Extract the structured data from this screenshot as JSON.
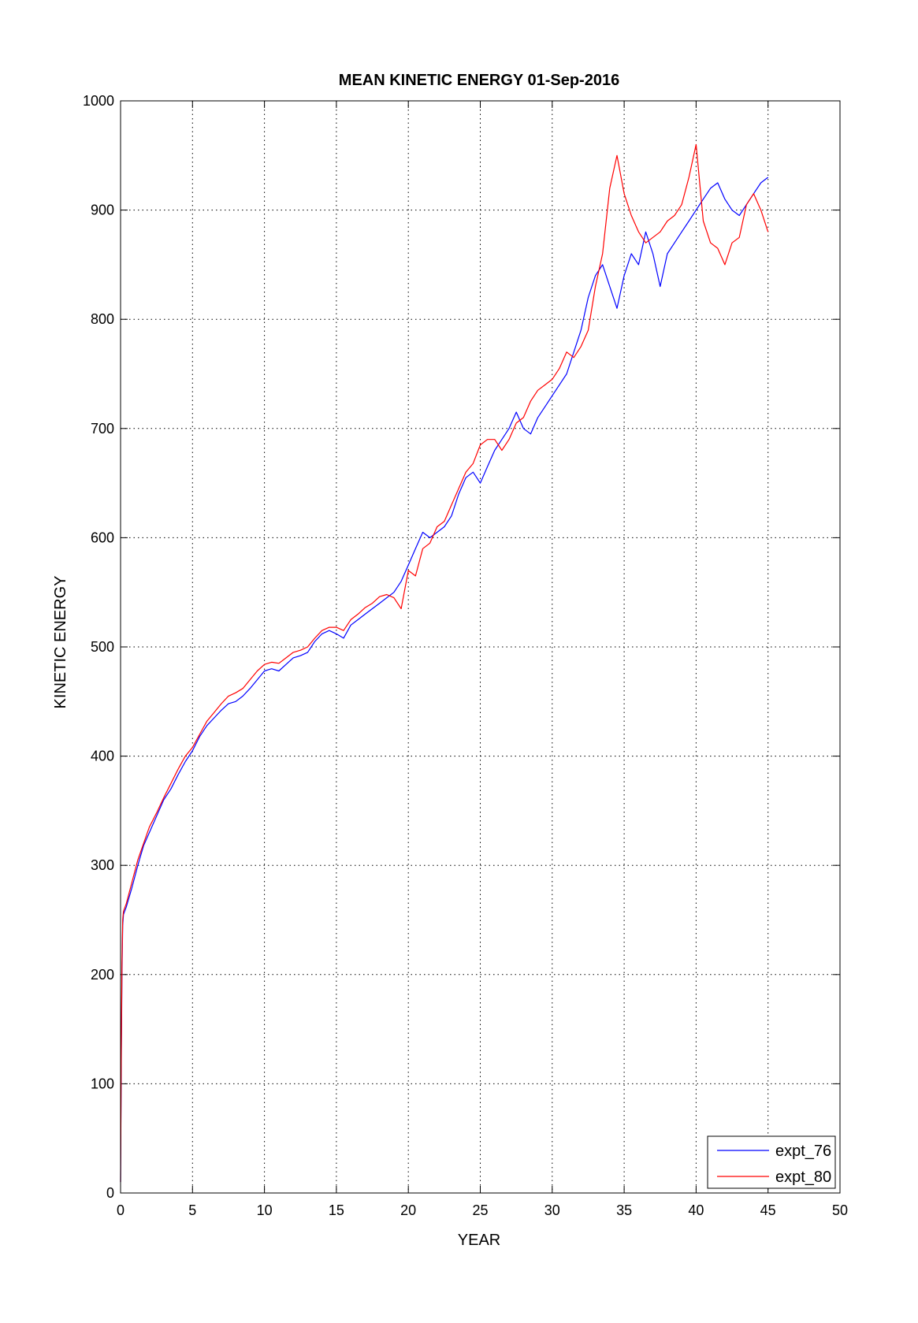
{
  "chart_data": {
    "type": "line",
    "title": "MEAN KINETIC ENERGY 01-Sep-2016",
    "xlabel": "YEAR",
    "ylabel": "KINETIC ENERGY",
    "xlim": [
      0,
      50
    ],
    "ylim": [
      0,
      1000
    ],
    "xticks": [
      "0",
      "5",
      "10",
      "15",
      "20",
      "25",
      "30",
      "35",
      "40",
      "45",
      "50"
    ],
    "yticks": [
      "0",
      "100",
      "200",
      "300",
      "400",
      "500",
      "600",
      "700",
      "800",
      "900",
      "1000"
    ],
    "grid": true,
    "legend": "bottom-right",
    "series": [
      {
        "name": "expt_76",
        "color": "#0000ff",
        "x": [
          0,
          0.05,
          0.1,
          0.15,
          0.2,
          0.4,
          0.8,
          1.2,
          1.6,
          2.0,
          2.5,
          3.0,
          3.5,
          4.0,
          4.5,
          5.0,
          5.5,
          6.0,
          6.5,
          7.0,
          7.5,
          8.0,
          8.5,
          9.0,
          9.5,
          10.0,
          10.5,
          11.0,
          11.5,
          12.0,
          12.5,
          13.0,
          13.5,
          14.0,
          14.5,
          15.0,
          15.5,
          16.0,
          16.5,
          17.0,
          17.5,
          18.0,
          18.5,
          19.0,
          19.5,
          20.0,
          20.5,
          21.0,
          21.5,
          22.0,
          22.5,
          23.0,
          23.5,
          24.0,
          24.5,
          25.0,
          25.5,
          26.0,
          26.5,
          27.0,
          27.5,
          28.0,
          28.5,
          29.0,
          29.5,
          30.0,
          30.5,
          31.0,
          31.5,
          32.0,
          32.5,
          33.0,
          33.5,
          34.0,
          34.5,
          35.0,
          35.5,
          36.0,
          36.5,
          37.0,
          37.5,
          38.0,
          38.5,
          39.0,
          39.5,
          40.0,
          40.5,
          41.0,
          41.5,
          42.0,
          42.5,
          43.0,
          43.5,
          44.0,
          44.5,
          45.0
        ],
        "y": [
          10,
          120,
          200,
          245,
          255,
          262,
          280,
          300,
          318,
          330,
          345,
          360,
          370,
          383,
          395,
          405,
          418,
          428,
          435,
          442,
          448,
          450,
          455,
          462,
          470,
          478,
          480,
          478,
          484,
          490,
          492,
          495,
          505,
          512,
          515,
          512,
          508,
          520,
          525,
          530,
          535,
          540,
          545,
          550,
          560,
          575,
          590,
          605,
          600,
          605,
          610,
          620,
          640,
          655,
          660,
          650,
          665,
          680,
          690,
          700,
          715,
          700,
          695,
          710,
          720,
          730,
          740,
          750,
          770,
          790,
          820,
          840,
          850,
          830,
          810,
          840,
          860,
          850,
          880,
          860,
          830,
          860,
          870,
          880,
          890,
          900,
          910,
          920,
          925,
          910,
          900,
          895,
          905,
          915,
          925,
          930
        ]
      },
      {
        "name": "expt_80",
        "color": "#ff0000",
        "x": [
          0,
          0.05,
          0.1,
          0.15,
          0.2,
          0.4,
          0.8,
          1.2,
          1.6,
          2.0,
          2.5,
          3.0,
          3.5,
          4.0,
          4.5,
          5.0,
          5.5,
          6.0,
          6.5,
          7.0,
          7.5,
          8.0,
          8.5,
          9.0,
          9.5,
          10.0,
          10.5,
          11.0,
          11.5,
          12.0,
          12.5,
          13.0,
          13.5,
          14.0,
          14.5,
          15.0,
          15.5,
          16.0,
          16.5,
          17.0,
          17.5,
          18.0,
          18.5,
          19.0,
          19.5,
          20.0,
          20.5,
          21.0,
          21.5,
          22.0,
          22.5,
          23.0,
          23.5,
          24.0,
          24.5,
          25.0,
          25.5,
          26.0,
          26.5,
          27.0,
          27.5,
          28.0,
          28.5,
          29.0,
          29.5,
          30.0,
          30.5,
          31.0,
          31.5,
          32.0,
          32.5,
          33.0,
          33.5,
          34.0,
          34.5,
          35.0,
          35.5,
          36.0,
          36.5,
          37.0,
          37.5,
          38.0,
          38.5,
          39.0,
          39.5,
          40.0,
          40.5,
          41.0,
          41.5,
          42.0,
          42.5,
          43.0,
          43.5,
          44.0,
          44.5,
          45.0
        ],
        "y": [
          10,
          130,
          210,
          250,
          258,
          265,
          285,
          305,
          320,
          335,
          348,
          362,
          375,
          388,
          400,
          408,
          420,
          432,
          440,
          448,
          455,
          458,
          462,
          470,
          478,
          484,
          486,
          485,
          490,
          495,
          497,
          500,
          508,
          515,
          518,
          518,
          515,
          525,
          530,
          536,
          540,
          546,
          548,
          545,
          535,
          570,
          565,
          590,
          595,
          610,
          615,
          630,
          645,
          660,
          668,
          685,
          690,
          690,
          680,
          690,
          705,
          710,
          725,
          735,
          740,
          745,
          755,
          770,
          765,
          775,
          790,
          830,
          860,
          920,
          950,
          915,
          895,
          880,
          870,
          875,
          880,
          890,
          895,
          905,
          930,
          960,
          890,
          870,
          865,
          850,
          870,
          875,
          905,
          915,
          900,
          880
        ]
      }
    ]
  }
}
